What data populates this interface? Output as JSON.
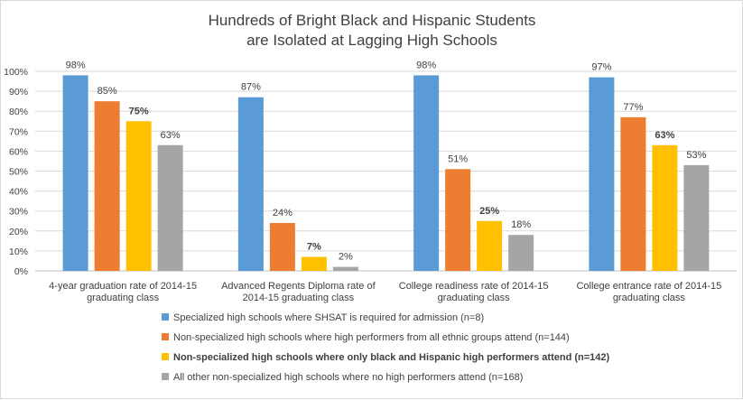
{
  "chart_data": {
    "type": "bar",
    "title": [
      "Hundreds of Bright Black and Hispanic Students",
      "are Isolated at Lagging High Schools"
    ],
    "categories": [
      [
        "4-year graduation rate of 2014-15",
        "graduating class"
      ],
      [
        "Advanced Regents Diploma rate of",
        "2014-15 graduating class"
      ],
      [
        "College readiness rate of 2014-15",
        "graduating class"
      ],
      [
        "College entrance rate of 2014-15",
        "graduating class"
      ]
    ],
    "y_ticks": [
      "0%",
      "10%",
      "20%",
      "30%",
      "40%",
      "50%",
      "60%",
      "70%",
      "80%",
      "90%",
      "100%"
    ],
    "ylim": [
      0,
      100
    ],
    "grid": true,
    "legend_position": "bottom",
    "series": [
      {
        "name": "Specialized high schools where SHSAT is required for admission (n=8)",
        "color": "#5b9bd5",
        "bold": false,
        "values": [
          98,
          87,
          98,
          97
        ],
        "labels": [
          "98%",
          "87%",
          "98%",
          "97%"
        ]
      },
      {
        "name": "Non-specialized high schools where high performers from all ethnic groups attend (n=144)",
        "color": "#ed7d31",
        "bold": false,
        "values": [
          85,
          24,
          51,
          77
        ],
        "labels": [
          "85%",
          "24%",
          "51%",
          "77%"
        ]
      },
      {
        "name": "Non-specialized high schools where only black and Hispanic high performers attend (n=142)",
        "color": "#ffc000",
        "bold": true,
        "values": [
          75,
          7,
          25,
          63
        ],
        "labels": [
          "75%",
          "7%",
          "25%",
          "63%"
        ]
      },
      {
        "name": "All other non-specialized high schools where no high performers attend (n=168)",
        "color": "#a5a5a5",
        "bold": false,
        "values": [
          63,
          2,
          18,
          53
        ],
        "labels": [
          "63%",
          "2%",
          "18%",
          "53%"
        ]
      }
    ]
  }
}
